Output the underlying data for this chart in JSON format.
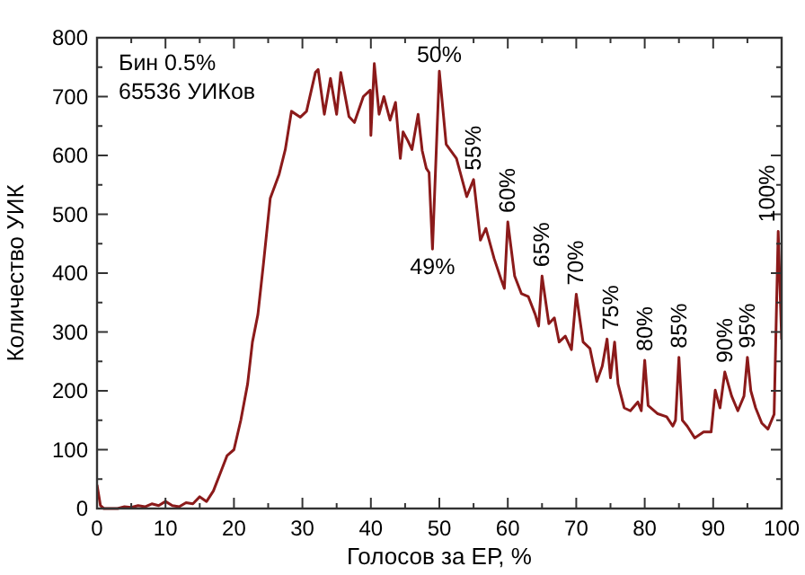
{
  "chart_data": {
    "type": "line",
    "xlabel": "Голосов за ЕР, %",
    "ylabel": "Количество УИК",
    "x": [
      0,
      0.5,
      1,
      2,
      3,
      4,
      5,
      6,
      7,
      8,
      9,
      10,
      11,
      12,
      13,
      14,
      15,
      16,
      17,
      18,
      19,
      20,
      21,
      22,
      22.7,
      23.5,
      24.3,
      25.3,
      26.6,
      27.5,
      28.4,
      29.7,
      30.6,
      31.9,
      32.3,
      33.2,
      34.1,
      35,
      35.6,
      36.8,
      37.6,
      38.9,
      39.9,
      40,
      40.5,
      41.2,
      41.9,
      42.8,
      43.6,
      44.3,
      44.7,
      45.4,
      46,
      46.9,
      47.5,
      48.1,
      48.5,
      49,
      50,
      51,
      52.5,
      54,
      55,
      56,
      56.8,
      58,
      59,
      59.5,
      60,
      61,
      62,
      63,
      64,
      64.5,
      65,
      66,
      66.8,
      67.5,
      68.4,
      69.3,
      70,
      71,
      72,
      73,
      73.8,
      74.5,
      75,
      75.6,
      76.1,
      77,
      77.9,
      79,
      79.5,
      80,
      80.5,
      81.9,
      83.2,
      84.1,
      84.5,
      85,
      85.5,
      86.2,
      87.3,
      88.6,
      89.7,
      90.3,
      91,
      91.7,
      92.7,
      93.6,
      94.5,
      95,
      95.5,
      96.2,
      97.1,
      98,
      98.9,
      99.5,
      100
    ],
    "series": [
      {
        "color": "#8b1a1a",
        "values": [
          40,
          5,
          0,
          0,
          0,
          3,
          2,
          5,
          3,
          8,
          5,
          12,
          5,
          3,
          10,
          8,
          20,
          12,
          30,
          60,
          90,
          100,
          150,
          212,
          283,
          330,
          415,
          527,
          568,
          610,
          675,
          665,
          675,
          741,
          746,
          670,
          731,
          670,
          741,
          666,
          656,
          700,
          711,
          634,
          756,
          670,
          700,
          660,
          690,
          595,
          640,
          625,
          610,
          670,
          608,
          578,
          571,
          441,
          743,
          619,
          595,
          530,
          559,
          456,
          476,
          425,
          390,
          374,
          487,
          395,
          365,
          360,
          330,
          310,
          395,
          314,
          324,
          283,
          293,
          270,
          364,
          283,
          272,
          216,
          242,
          288,
          222,
          283,
          212,
          171,
          166,
          181,
          166,
          252,
          175,
          161,
          156,
          140,
          150,
          257,
          150,
          140,
          120,
          130,
          130,
          201,
          171,
          232,
          191,
          166,
          191,
          257,
          200,
          171,
          145,
          135,
          160,
          471,
          287
        ]
      }
    ],
    "xlim": [
      0,
      100
    ],
    "ylim": [
      0,
      800
    ],
    "xticks": [
      0,
      {
        "value": 5,
        "label": null
      },
      10,
      {
        "value": 15,
        "label": null
      },
      20,
      {
        "value": 25,
        "label": null
      },
      30,
      {
        "value": 35,
        "label": null
      },
      40,
      {
        "value": 45,
        "label": null
      },
      50,
      {
        "value": 55,
        "label": null
      },
      60,
      {
        "value": 65,
        "label": null
      },
      70,
      {
        "value": 75,
        "label": null
      },
      80,
      {
        "value": 85,
        "label": null
      },
      90,
      {
        "value": 95,
        "label": null
      },
      100
    ],
    "yticks": [
      0,
      {
        "value": 50,
        "label": null
      },
      100,
      {
        "value": 150,
        "label": null
      },
      200,
      {
        "value": 250,
        "label": null
      },
      300,
      {
        "value": 350,
        "label": null
      },
      400,
      {
        "value": 450,
        "label": null
      },
      500,
      {
        "value": 550,
        "label": null
      },
      600,
      {
        "value": 650,
        "label": null
      },
      700,
      {
        "value": 750,
        "label": null
      },
      800
    ],
    "grid": false,
    "marker": "none",
    "line_style": "solid",
    "annotations": [
      "Бин 0.5%",
      "65536 УИКов",
      {
        "text": "50%",
        "x": 50,
        "y": 743
      },
      {
        "text": "49%",
        "x": 49,
        "y": 441
      },
      {
        "text": "55%",
        "x": 55,
        "y": 559
      },
      {
        "text": "60%",
        "x": 60,
        "y": 487
      },
      {
        "text": "65%",
        "x": 65,
        "y": 395
      },
      {
        "text": "70%",
        "x": 70,
        "y": 364
      },
      {
        "text": "75%",
        "x": 75,
        "y": 288
      },
      {
        "text": "80%",
        "x": 80,
        "y": 252
      },
      {
        "text": "85%",
        "x": 85,
        "y": 257
      },
      {
        "text": "90%",
        "x": 91.7,
        "y": 232
      },
      {
        "text": "95%",
        "x": 95,
        "y": 257
      },
      {
        "text": "100%",
        "x": 99.5,
        "y": 471
      }
    ]
  }
}
